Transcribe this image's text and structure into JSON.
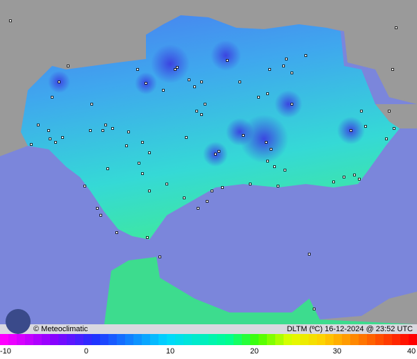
{
  "footer": {
    "brand": "© Meteoclimatic",
    "caption": "DLTM (ºC)  16-12-2024 @ 23:52 UTC"
  },
  "scale": {
    "labels": [
      "-10",
      "0",
      "10",
      "20",
      "30",
      "40"
    ]
  }
}
